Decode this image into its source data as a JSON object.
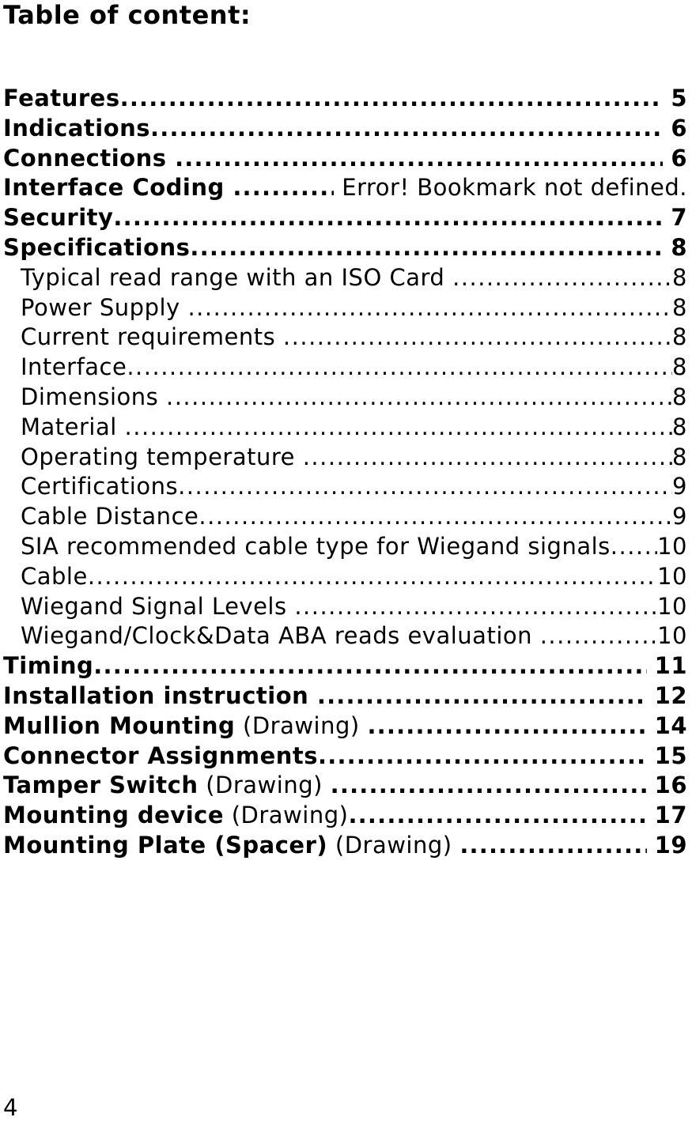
{
  "page": {
    "title": "Table of content:",
    "footer_page_number": "4"
  },
  "colors": {
    "text": "#000000",
    "background": "#ffffff"
  },
  "leader": {
    "char": "."
  },
  "toc": {
    "rows": [
      {
        "indent": false,
        "b": "Features",
        "n": "",
        "page": "5",
        "page_bold": true,
        "leader_bold": true,
        "pad": true
      },
      {
        "indent": false,
        "b": "Indications",
        "n": "",
        "page": "6",
        "page_bold": true,
        "leader_bold": true,
        "pad": true
      },
      {
        "indent": false,
        "b": "Connections ",
        "n": "",
        "page": "6",
        "page_bold": true,
        "leader_bold": true,
        "pad": true
      },
      {
        "indent": false,
        "b": "Interface Coding ",
        "n": "",
        "page": "Error! Bookmark not defined.",
        "page_bold": false,
        "leader_bold": true,
        "pad": true
      },
      {
        "indent": false,
        "b": "Security",
        "n": "",
        "page": "7",
        "page_bold": true,
        "leader_bold": true,
        "pad": true
      },
      {
        "indent": false,
        "b": "Specifications",
        "n": "",
        "page": "8",
        "page_bold": true,
        "leader_bold": true,
        "pad": true
      },
      {
        "indent": true,
        "b": "",
        "n": "Typical read range with an ISO Card ",
        "page": "8",
        "page_bold": false,
        "leader_bold": false,
        "pad": false
      },
      {
        "indent": true,
        "b": "",
        "n": "Power Supply ",
        "page": "8",
        "page_bold": false,
        "leader_bold": false,
        "pad": false
      },
      {
        "indent": true,
        "b": "",
        "n": "Current requirements ",
        "page": "8",
        "page_bold": false,
        "leader_bold": false,
        "pad": false
      },
      {
        "indent": true,
        "b": "",
        "n": "Interface",
        "page": "8",
        "page_bold": false,
        "leader_bold": false,
        "pad": false
      },
      {
        "indent": true,
        "b": "",
        "n": "Dimensions ",
        "page": "8",
        "page_bold": false,
        "leader_bold": false,
        "pad": false
      },
      {
        "indent": true,
        "b": "",
        "n": "Material ",
        "page": "8",
        "page_bold": false,
        "leader_bold": false,
        "pad": false
      },
      {
        "indent": true,
        "b": "",
        "n": "Operating temperature ",
        "page": "8",
        "page_bold": false,
        "leader_bold": false,
        "pad": false
      },
      {
        "indent": true,
        "b": "",
        "n": "Certifications",
        "page": "9",
        "page_bold": false,
        "leader_bold": false,
        "pad": false
      },
      {
        "indent": true,
        "b": "",
        "n": "Cable Distance",
        "page": "9",
        "page_bold": false,
        "leader_bold": false,
        "pad": false
      },
      {
        "indent": true,
        "b": "",
        "n": "SIA recommended cable type for Wiegand signals",
        "page": "10",
        "page_bold": false,
        "leader_bold": false,
        "pad": false
      },
      {
        "indent": true,
        "b": "",
        "n": "Cable",
        "page": "10",
        "page_bold": false,
        "leader_bold": false,
        "pad": false
      },
      {
        "indent": true,
        "b": "",
        "n": "Wiegand Signal Levels ",
        "page": "10",
        "page_bold": false,
        "leader_bold": false,
        "pad": false
      },
      {
        "indent": true,
        "b": "",
        "n": "Wiegand/Clock&Data ABA reads evaluation ",
        "page": "10",
        "page_bold": false,
        "leader_bold": false,
        "pad": false
      },
      {
        "indent": false,
        "b": "Timing",
        "n": "",
        "page": "11",
        "page_bold": true,
        "leader_bold": true,
        "pad": true
      },
      {
        "indent": false,
        "b": "Installation instruction ",
        "n": "",
        "page": "12",
        "page_bold": true,
        "leader_bold": true,
        "pad": true
      },
      {
        "indent": false,
        "b": "Mullion Mounting",
        "n": " (Drawing) ",
        "page": "14",
        "page_bold": true,
        "leader_bold": true,
        "pad": true
      },
      {
        "indent": false,
        "b": "Connector Assignments",
        "n": "",
        "page": "15",
        "page_bold": true,
        "leader_bold": true,
        "pad": true
      },
      {
        "indent": false,
        "b": "Tamper Switch",
        "n": " (Drawing) ",
        "page": "16",
        "page_bold": true,
        "leader_bold": true,
        "pad": true
      },
      {
        "indent": false,
        "b": "Mounting device",
        "n": " (Drawing)",
        "page": "17",
        "page_bold": true,
        "leader_bold": true,
        "pad": true
      },
      {
        "indent": false,
        "b": "Mounting Plate (Spacer)",
        "n": " (Drawing) ",
        "page": "19",
        "page_bold": true,
        "leader_bold": true,
        "pad": true
      }
    ]
  }
}
